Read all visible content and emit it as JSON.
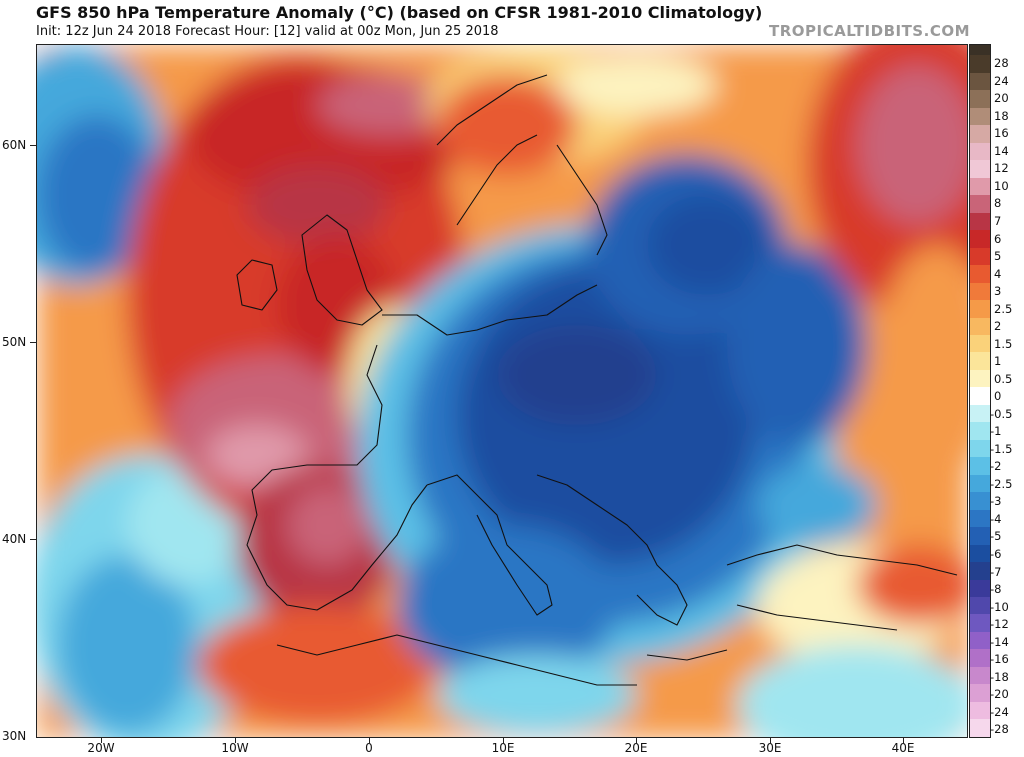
{
  "header": {
    "title": "GFS 850 hPa Temperature Anomaly (°C) (based on CFSR 1981-2010 Climatology)",
    "subtitle": "Init: 12z Jun 24 2018   Forecast Hour: [12]   valid at 00z Mon, Jun 25 2018",
    "watermark": "TROPICALTIDBITS.COM"
  },
  "map": {
    "lat_labels": [
      "60N",
      "50N",
      "40N",
      "30N"
    ],
    "lon_labels": [
      "20W",
      "10W",
      "0",
      "10E",
      "20E",
      "30E",
      "40E"
    ]
  },
  "colorbar": {
    "levels": [
      "28",
      "24",
      "20",
      "18",
      "16",
      "14",
      "12",
      "10",
      "8",
      "7",
      "6",
      "5",
      "4",
      "3",
      "2.5",
      "2",
      "1.5",
      "1",
      "0.5",
      "0",
      "-0.5",
      "-1",
      "-1.5",
      "-2",
      "-2.5",
      "-3",
      "-4",
      "-5",
      "-6",
      "-7",
      "-8",
      "-10",
      "-12",
      "-14",
      "-16",
      "-18",
      "-20",
      "-24",
      "-28"
    ],
    "colors": [
      "#4a3b2a",
      "#6b5540",
      "#8c7058",
      "#b08d78",
      "#d6a9a4",
      "#e8b8c6",
      "#f0c8d6",
      "#e09aaa",
      "#c96478",
      "#b83545",
      "#c82828",
      "#d83a2a",
      "#e85a30",
      "#f07a3a",
      "#f59a48",
      "#f8b860",
      "#fad27a",
      "#fbe59a",
      "#fdf3c0",
      "#ffffff",
      "#c8f2f5",
      "#a0e6f0",
      "#7ed6ec",
      "#5cc0e6",
      "#45a8dc",
      "#3890d2",
      "#2c76c4",
      "#2360b4",
      "#1b4ea0",
      "#24408e",
      "#3a3a9a",
      "#5048ac",
      "#6e58c0",
      "#9060c8",
      "#b070c8",
      "#c888cc",
      "#dca0d4",
      "#eebce0",
      "#f6d8ec"
    ]
  }
}
